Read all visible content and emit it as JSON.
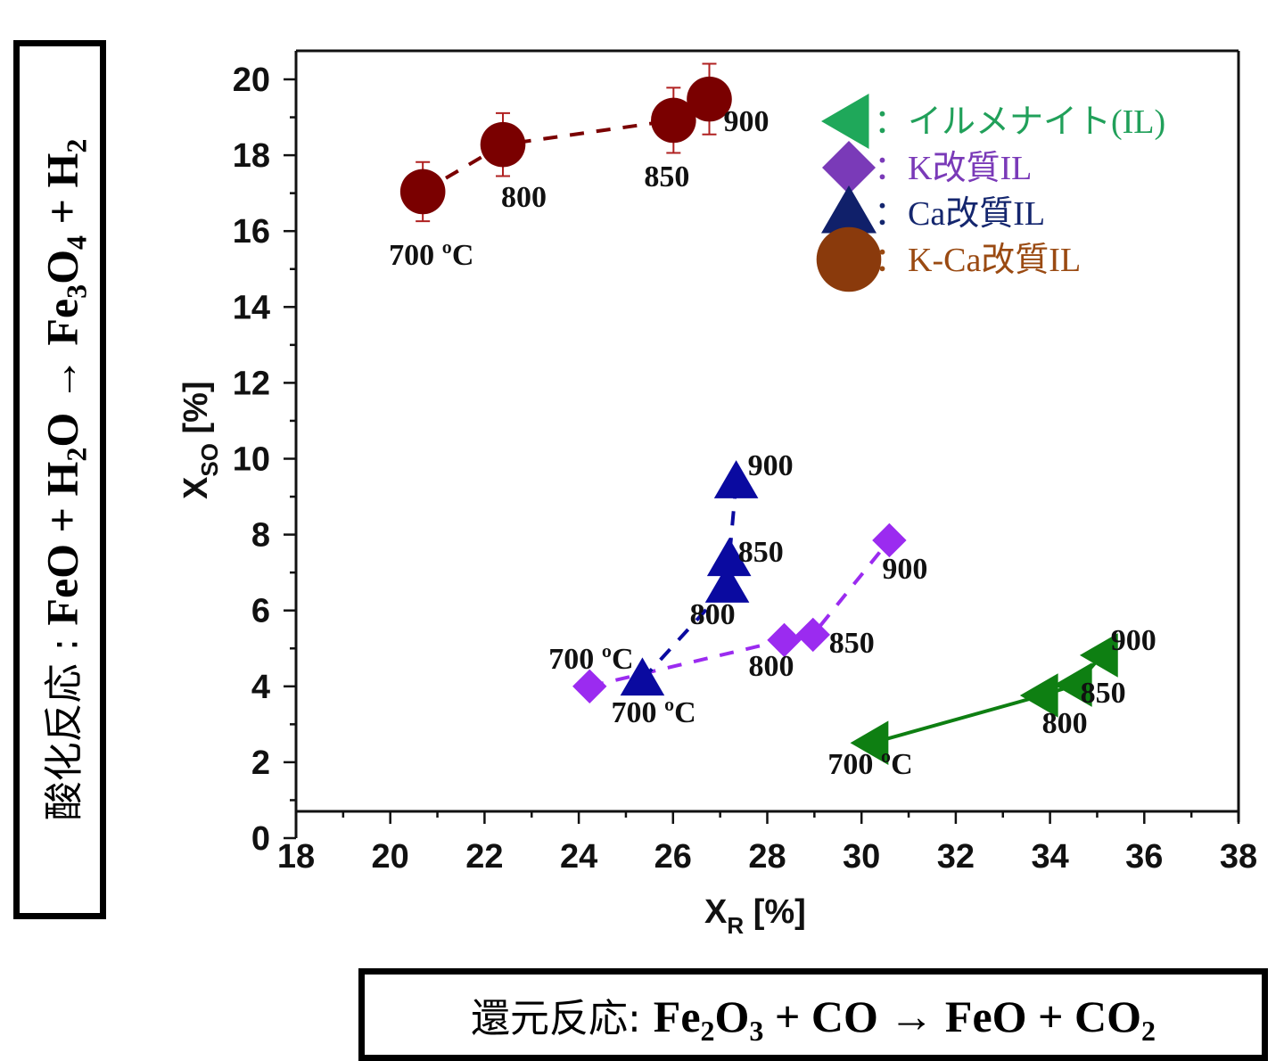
{
  "reactions": {
    "oxidation": {
      "label": "酸化反応 : ",
      "equation_parts": [
        "FeO + H",
        "2",
        "O → Fe",
        "3",
        "O",
        "4",
        " + H",
        "2"
      ]
    },
    "reduction": {
      "label": "還元反応: ",
      "equation_parts": [
        "Fe",
        "2",
        "O",
        "3",
        " + CO → FeO + CO",
        "2"
      ]
    }
  },
  "chart_data": {
    "type": "scatter",
    "title": "",
    "xlabel": "X",
    "xlabel_sub": "R",
    "xlabel_unit": " [%]",
    "ylabel": "X",
    "ylabel_sub": "SO",
    "ylabel_unit": " [%]",
    "xlim": [
      18,
      38
    ],
    "ylim": [
      0,
      20
    ],
    "xticks": [
      "18",
      "20",
      "22",
      "24",
      "26",
      "28",
      "30",
      "32",
      "34",
      "36",
      "38"
    ],
    "yticks": [
      "0",
      "2",
      "4",
      "6",
      "8",
      "10",
      "12",
      "14",
      "16",
      "18",
      "20"
    ],
    "grid": false,
    "legend_position": "top-right",
    "series": [
      {
        "name": "：イルメナイト(IL)",
        "marker": "triangle-left",
        "color": "#0E7F12",
        "legend_color": "#1FA85A",
        "text_color": "#21A05A",
        "line": "solid",
        "x": [
          30.23,
          33.83,
          34.55,
          35.1
        ],
        "y": [
          2.51,
          3.76,
          4.04,
          4.82
        ],
        "labels": [
          "700 ºC",
          "800",
          "850",
          "900"
        ]
      },
      {
        "name": "：K改質IL",
        "marker": "diamond",
        "color": "#9B2BF0",
        "legend_color": "#7A3AB8",
        "text_color": "#7A3AB8",
        "line": "dashed",
        "x": [
          24.23,
          28.36,
          28.97,
          30.59
        ],
        "y": [
          4.0,
          5.22,
          5.36,
          7.85
        ],
        "labels": [
          "",
          "800",
          "850",
          "900"
        ]
      },
      {
        "name": "：Ca改質IL",
        "marker": "triangle-up",
        "color": "#0A0AA0",
        "legend_color": "#10206A",
        "text_color": "#14266E",
        "line": "dashed",
        "x": [
          25.35,
          27.15,
          27.19,
          27.34
        ],
        "y": [
          4.18,
          6.63,
          7.33,
          9.38
        ],
        "labels": [
          "700 ºC",
          "800",
          "850",
          "900"
        ]
      },
      {
        "name": "：K-Ca改質IL",
        "marker": "circle",
        "color": "#7A0000",
        "legend_color": "#8A3A0C",
        "text_color": "#9A4A12",
        "line": "dashed",
        "x": [
          20.69,
          22.39,
          26.01,
          26.77
        ],
        "y": [
          17.04,
          18.28,
          18.92,
          19.48
        ],
        "yerr": [
          0.78,
          0.83,
          0.86,
          0.93
        ],
        "labels": [
          "700 ºC",
          "800",
          "850",
          "900"
        ]
      }
    ],
    "extra_labels": [
      {
        "text": "700 ºC",
        "series": "：K改質IL"
      }
    ]
  }
}
